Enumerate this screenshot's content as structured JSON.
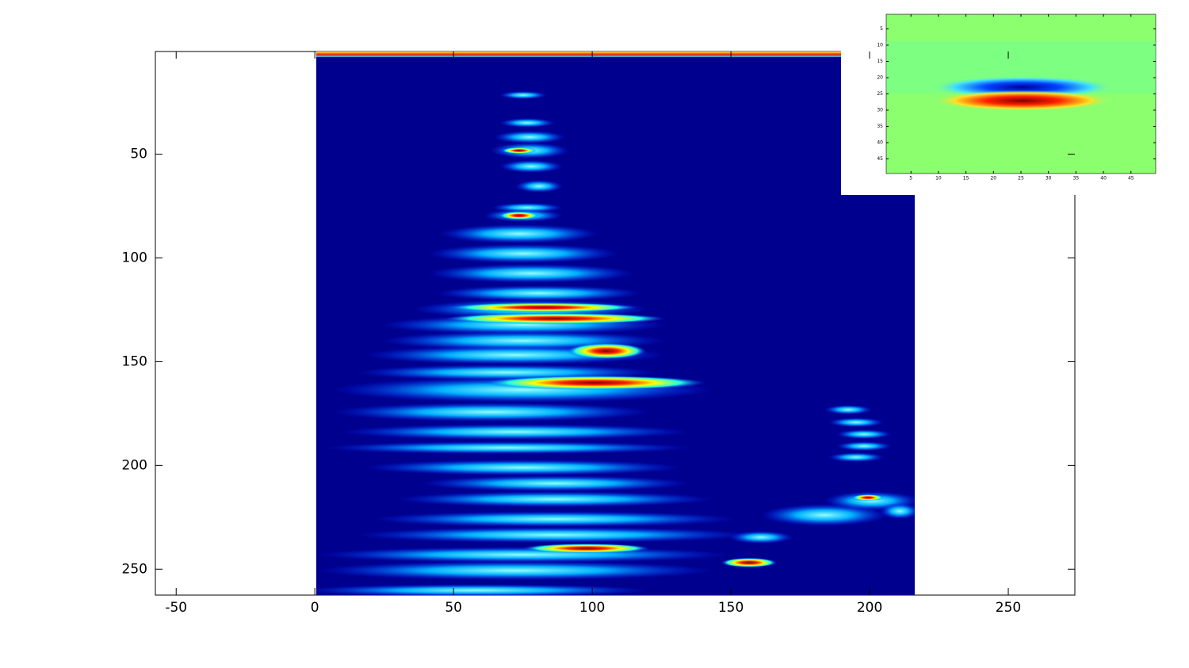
{
  "chart_data": [
    {
      "type": "image",
      "xlim": [
        -57.5,
        274
      ],
      "ylim": [
        0.5,
        262.5
      ],
      "y_reversed": true,
      "xticks": [
        -50,
        0,
        50,
        100,
        150,
        200,
        250
      ],
      "yticks": [
        50,
        100,
        150,
        200,
        250
      ],
      "grid": false
    },
    {
      "type": "image",
      "xlim": [
        0.5,
        49.5
      ],
      "ylim": [
        0.5,
        49.5
      ],
      "y_reversed": true,
      "xticks": [
        5,
        10,
        15,
        20,
        25,
        30,
        35,
        40,
        45
      ],
      "yticks": [
        5,
        10,
        15,
        20,
        25,
        30,
        35,
        40,
        45
      ],
      "grid": false
    }
  ]
}
